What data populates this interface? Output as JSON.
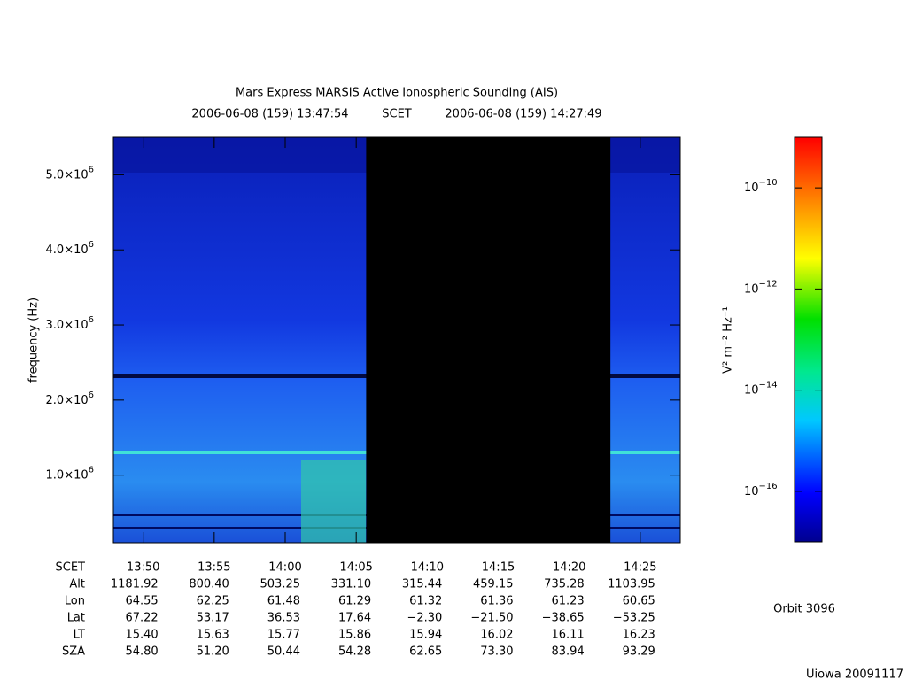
{
  "chart_data": {
    "type": "spectrogram",
    "title": "Mars Express MARSIS Active Ionospheric Sounding (AIS)",
    "time_standard": "SCET",
    "xlim": [
      "2006-06-08 (159) 13:47:54",
      "2006-06-08 (159) 14:27:49"
    ],
    "xticks": [
      "13:50",
      "13:55",
      "14:00",
      "14:05",
      "14:10",
      "14:15",
      "14:20",
      "14:25"
    ],
    "no_data": [
      "14:05:42",
      "14:22:54"
    ],
    "ylabel": "frequency (Hz)",
    "ylim": [
      100000,
      5500000
    ],
    "yticks": [
      {
        "value": 1000000,
        "label": "1.0×106"
      },
      {
        "value": 2000000,
        "label": "2.0×106"
      },
      {
        "value": 3000000,
        "label": "3.0×106"
      },
      {
        "value": 4000000,
        "label": "4.0×106"
      },
      {
        "value": 5000000,
        "label": "5.0×106"
      }
    ],
    "colorbar": {
      "label": "V² m⁻² Hz⁻¹",
      "log": true,
      "lim": [
        1e-17,
        1e-09
      ],
      "ticks": [
        {
          "value": 1e-10,
          "label": "10−10"
        },
        {
          "value": 1e-12,
          "label": "10−12"
        },
        {
          "value": 1e-14,
          "label": "10−14"
        },
        {
          "value": 1e-16,
          "label": "10−16"
        }
      ]
    },
    "ephemeris": {
      "time_label": "SCET",
      "rows": [
        {
          "label": "Alt",
          "values": [
            "1181.92",
            "800.40",
            "503.25",
            "331.10",
            "315.44",
            "459.15",
            "735.28",
            "1103.95"
          ]
        },
        {
          "label": "Lon",
          "values": [
            "64.55",
            "62.25",
            "61.48",
            "61.29",
            "61.32",
            "61.36",
            "61.23",
            "60.65"
          ]
        },
        {
          "label": "Lat",
          "values": [
            "67.22",
            "53.17",
            "36.53",
            "17.64",
            "−2.30",
            "−21.50",
            "−38.65",
            "−53.25"
          ]
        },
        {
          "label": "LT",
          "values": [
            "15.40",
            "15.63",
            "15.77",
            "15.86",
            "15.94",
            "16.02",
            "16.11",
            "16.23"
          ]
        },
        {
          "label": "SZA",
          "values": [
            "54.80",
            "51.20",
            "50.44",
            "54.28",
            "62.65",
            "73.30",
            "83.94",
            "93.29"
          ]
        }
      ]
    },
    "orbit": "Orbit 3096",
    "credit": "Uiowa 20091117"
  }
}
